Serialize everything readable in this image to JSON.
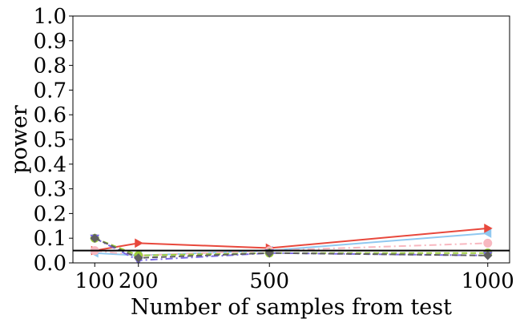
{
  "chart_data": {
    "type": "line",
    "xlabel": "Number of samples from test",
    "ylabel": "power",
    "x": [
      100,
      200,
      500,
      1000
    ],
    "xticks": [
      "100",
      "200",
      "500",
      "1000"
    ],
    "xlim": [
      50,
      1050
    ],
    "ylim": [
      0.0,
      1.0
    ],
    "yticks": [
      "0.0",
      "0.1",
      "0.2",
      "0.3",
      "0.4",
      "0.5",
      "0.6",
      "0.7",
      "0.8",
      "0.9",
      "1.0"
    ],
    "grid": false,
    "reference_line": {
      "y": 0.05,
      "color": "#000000"
    },
    "series": [
      {
        "values": [
          0.04,
          0.03,
          0.05,
          0.12
        ],
        "color": "#90c8f0",
        "dash": "solid",
        "marker": "triangle-left"
      },
      {
        "values": [
          0.05,
          0.08,
          0.06,
          0.14
        ],
        "color": "#e8483c",
        "dash": "solid",
        "marker": "triangle-right"
      },
      {
        "values": [
          0.05,
          0.03,
          0.05,
          0.08
        ],
        "color": "#f8b8c0",
        "dash": "dashdot",
        "marker": "circle"
      },
      {
        "values": [
          0.1,
          0.03,
          0.04,
          0.04
        ],
        "color": "#9bcc3c",
        "dash": "dashed",
        "marker": "circle"
      },
      {
        "values": [
          0.1,
          0.01,
          0.04,
          0.03
        ],
        "color": "#7b68e8",
        "dash": "dashdot",
        "marker": "triangle-down"
      },
      {
        "values": [
          0.1,
          0.02,
          0.04,
          0.03
        ],
        "color": "#606060",
        "dash": "dashed",
        "marker": "diamond"
      }
    ]
  }
}
